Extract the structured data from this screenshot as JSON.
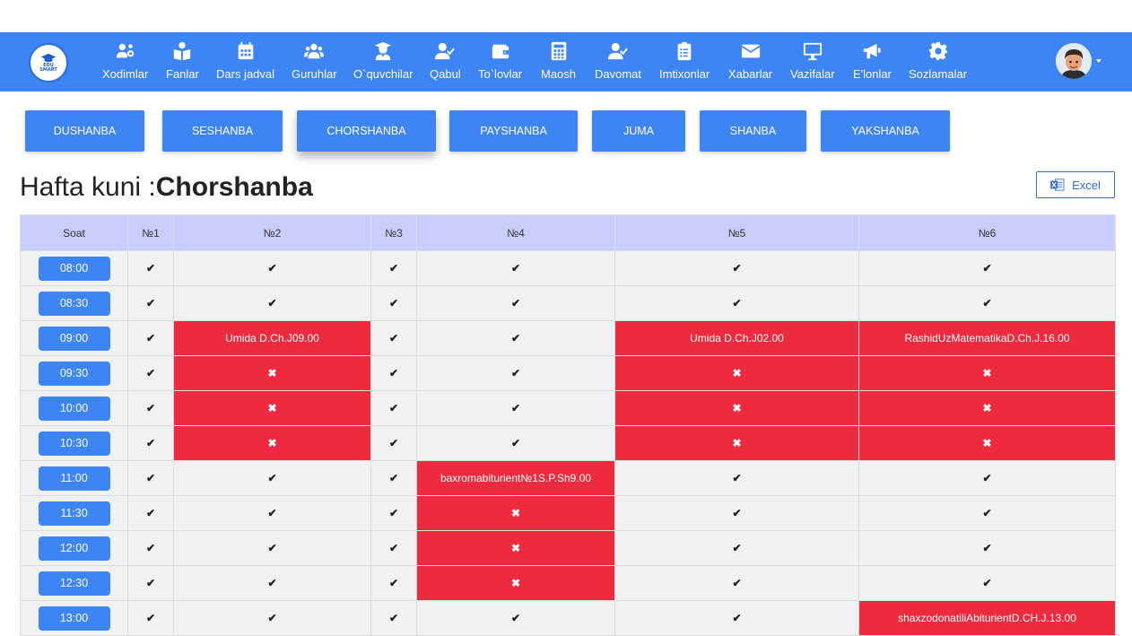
{
  "logo": {
    "text_line1": "EDU",
    "text_line2": "SMART"
  },
  "nav": [
    {
      "label": "Xodimlar",
      "icon": "users-cog-icon"
    },
    {
      "label": "Fanlar",
      "icon": "book-reader-icon"
    },
    {
      "label": "Dars jadval",
      "icon": "calendar-icon"
    },
    {
      "label": "Guruhlar",
      "icon": "users-icon"
    },
    {
      "label": "O`quvchilar",
      "icon": "graduate-icon"
    },
    {
      "label": "Qabul",
      "icon": "user-check-icon"
    },
    {
      "label": "To`lovlar",
      "icon": "wallet-icon"
    },
    {
      "label": "Maosh",
      "icon": "calculator-icon"
    },
    {
      "label": "Davomat",
      "icon": "user-check-icon"
    },
    {
      "label": "Imtixonlar",
      "icon": "clipboard-list-icon"
    },
    {
      "label": "Xabarlar",
      "icon": "envelope-icon"
    },
    {
      "label": "Vazifalar",
      "icon": "desktop-icon"
    },
    {
      "label": "E'lonlar",
      "icon": "bullhorn-icon"
    },
    {
      "label": "Sozlamalar",
      "icon": "gear-icon"
    }
  ],
  "days": [
    "DUSHANBA",
    "SESHANBA",
    "CHORSHANBA",
    "PAYSHANBA",
    "JUMA",
    "SHANBA",
    "YAKSHANBA"
  ],
  "active_day_index": 2,
  "heading": {
    "prefix": "Hafta kuni :",
    "day": "Chorshanba"
  },
  "excel_label": "Excel",
  "table": {
    "columns": [
      "Soat",
      "№1",
      "№2",
      "№3",
      "№4",
      "№5",
      "№6"
    ],
    "rows": [
      {
        "time": "08:00",
        "cells": [
          {
            "t": "check"
          },
          {
            "t": "check"
          },
          {
            "t": "check"
          },
          {
            "t": "check"
          },
          {
            "t": "check"
          },
          {
            "t": "check"
          }
        ]
      },
      {
        "time": "08:30",
        "cells": [
          {
            "t": "check"
          },
          {
            "t": "check"
          },
          {
            "t": "check"
          },
          {
            "t": "check"
          },
          {
            "t": "check"
          },
          {
            "t": "check"
          }
        ]
      },
      {
        "time": "09:00",
        "cells": [
          {
            "t": "check"
          },
          {
            "t": "busy",
            "text": "Umida D.Ch.J09.00"
          },
          {
            "t": "check"
          },
          {
            "t": "check"
          },
          {
            "t": "busy",
            "text": "Umida D.Ch.J02.00"
          },
          {
            "t": "busy",
            "text": "RashidUzMatematikaD.Ch.J.16.00"
          }
        ]
      },
      {
        "time": "09:30",
        "cells": [
          {
            "t": "check"
          },
          {
            "t": "cross"
          },
          {
            "t": "check"
          },
          {
            "t": "check"
          },
          {
            "t": "cross"
          },
          {
            "t": "cross"
          }
        ]
      },
      {
        "time": "10:00",
        "cells": [
          {
            "t": "check"
          },
          {
            "t": "cross"
          },
          {
            "t": "check"
          },
          {
            "t": "check"
          },
          {
            "t": "cross"
          },
          {
            "t": "cross"
          }
        ]
      },
      {
        "time": "10:30",
        "cells": [
          {
            "t": "check"
          },
          {
            "t": "cross"
          },
          {
            "t": "check"
          },
          {
            "t": "check"
          },
          {
            "t": "cross"
          },
          {
            "t": "cross"
          }
        ]
      },
      {
        "time": "11:00",
        "cells": [
          {
            "t": "check"
          },
          {
            "t": "check"
          },
          {
            "t": "check"
          },
          {
            "t": "busy",
            "text": "baxromabiturient№1S.P.Sh9.00"
          },
          {
            "t": "check"
          },
          {
            "t": "check"
          }
        ]
      },
      {
        "time": "11:30",
        "cells": [
          {
            "t": "check"
          },
          {
            "t": "check"
          },
          {
            "t": "check"
          },
          {
            "t": "cross"
          },
          {
            "t": "check"
          },
          {
            "t": "check"
          }
        ]
      },
      {
        "time": "12:00",
        "cells": [
          {
            "t": "check"
          },
          {
            "t": "check"
          },
          {
            "t": "check"
          },
          {
            "t": "cross"
          },
          {
            "t": "check"
          },
          {
            "t": "check"
          }
        ]
      },
      {
        "time": "12:30",
        "cells": [
          {
            "t": "check"
          },
          {
            "t": "check"
          },
          {
            "t": "check"
          },
          {
            "t": "cross"
          },
          {
            "t": "check"
          },
          {
            "t": "check"
          }
        ]
      },
      {
        "time": "13:00",
        "cells": [
          {
            "t": "check"
          },
          {
            "t": "check"
          },
          {
            "t": "check"
          },
          {
            "t": "check"
          },
          {
            "t": "check"
          },
          {
            "t": "busy",
            "text": "shaxzodonatiliAbiturientD.CH.J.13.00"
          }
        ]
      }
    ]
  },
  "marks": {
    "check": "✔",
    "cross": "✖"
  },
  "colors": {
    "primary": "#3d84f5",
    "busy": "#ed2a3e",
    "header": "#c8cefc",
    "cell": "#f0f1f3"
  }
}
